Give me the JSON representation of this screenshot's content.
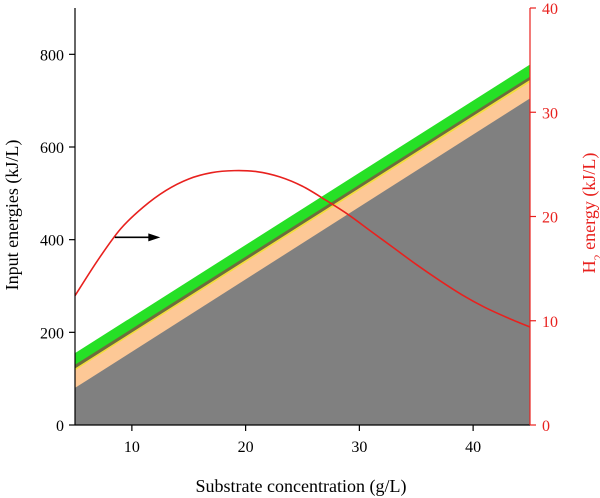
{
  "chart_data": {
    "type": "area",
    "xlabel": "Substrate concentration (g/L)",
    "ylabel": "Input energies (kJ/L)",
    "y2label": "H",
    "y2label_sub": "2",
    "y2label_rest": " energy (kJ/L)",
    "xlim": [
      5,
      45
    ],
    "ylim": [
      0,
      900
    ],
    "y2lim": [
      0,
      40
    ],
    "xticks": [
      10,
      20,
      30,
      40
    ],
    "yticks": [
      0,
      200,
      400,
      600,
      800
    ],
    "y2ticks": [
      0,
      10,
      20,
      30,
      40
    ],
    "grid": false,
    "legend": "none",
    "stacked_areas": [
      {
        "x": [
          5,
          45
        ],
        "y": [
          80,
          705
        ],
        "color": "#808080"
      },
      {
        "x": [
          5,
          45
        ],
        "y": [
          118,
          740
        ],
        "color": "#fdc896"
      },
      {
        "x": [
          5,
          45
        ],
        "y": [
          122,
          745
        ],
        "color": "#f2de3c"
      },
      {
        "x": [
          5,
          45
        ],
        "y": [
          130,
          752
        ],
        "color": "#6d6d3c"
      },
      {
        "x": [
          5,
          45
        ],
        "y": [
          155,
          778
        ],
        "color": "#26e026"
      }
    ],
    "h2_curve": {
      "axis": "right",
      "color": "#e8211e",
      "x": [
        5,
        7,
        9,
        11,
        13,
        15,
        17,
        19,
        21,
        23,
        25,
        27,
        29,
        31,
        33,
        35,
        37,
        39,
        41,
        43,
        45
      ],
      "y": [
        12.4,
        15.8,
        18.8,
        20.9,
        22.5,
        23.6,
        24.2,
        24.4,
        24.3,
        23.8,
        22.9,
        21.6,
        20.2,
        18.6,
        17.0,
        15.4,
        13.9,
        12.5,
        11.3,
        10.3,
        9.4
      ]
    },
    "arrow_annotation": {
      "x_start": 8.5,
      "x_end": 12.5,
      "y": 405,
      "color": "#000000"
    }
  }
}
